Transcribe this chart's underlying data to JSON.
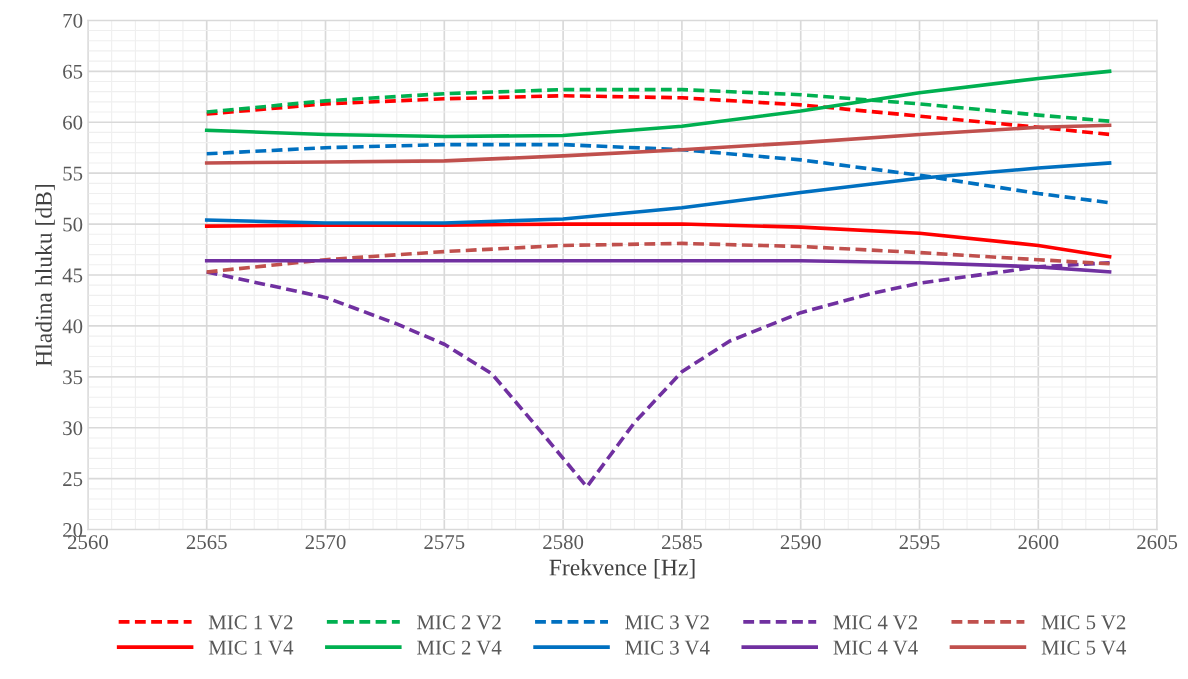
{
  "chart_data": {
    "type": "line",
    "xlabel": "Frekvence [Hz]",
    "ylabel": "Hladina hluku [dB]",
    "x": [
      2565,
      2570,
      2575,
      2580,
      2585,
      2590,
      2595,
      2600,
      2603
    ],
    "xlim": [
      2560,
      2605
    ],
    "xticks": [
      2560,
      2565,
      2570,
      2575,
      2580,
      2585,
      2590,
      2595,
      2600,
      2605
    ],
    "ylim": [
      20,
      70
    ],
    "yticks": [
      20,
      25,
      30,
      35,
      40,
      45,
      50,
      55,
      60,
      65,
      70
    ],
    "grid": true,
    "legend": "bottom",
    "marker": "none",
    "series": [
      {
        "name": "MIC 1 V2",
        "color": "#ff0000",
        "line_style": "dashed",
        "values": [
          60.8,
          61.8,
          62.3,
          62.6,
          62.4,
          61.7,
          60.6,
          59.5,
          58.8
        ]
      },
      {
        "name": "MIC 2 V2",
        "color": "#00b050",
        "line_style": "dashed",
        "values": [
          61.0,
          62.1,
          62.8,
          63.2,
          63.2,
          62.7,
          61.8,
          60.7,
          60.1
        ]
      },
      {
        "name": "MIC 3 V2",
        "color": "#0070c0",
        "line_style": "dashed",
        "values": [
          56.9,
          57.5,
          57.8,
          57.8,
          57.3,
          56.3,
          54.8,
          53.0,
          52.1
        ]
      },
      {
        "name": "MIC 4 V2",
        "color": "#7030a0",
        "line_style": "dashed",
        "x": [
          2565,
          2570,
          2573,
          2575,
          2577,
          2579,
          2581,
          2583,
          2585,
          2587,
          2590,
          2593,
          2595,
          2600,
          2603
        ],
        "values": [
          45.3,
          42.8,
          40.2,
          38.2,
          35.3,
          29.8,
          24.2,
          30.5,
          35.5,
          38.5,
          41.3,
          43.2,
          44.2,
          45.8,
          46.2
        ]
      },
      {
        "name": "MIC 5 V2",
        "color": "#c0504d",
        "line_style": "dashed",
        "values": [
          45.3,
          46.5,
          47.3,
          47.9,
          48.1,
          47.8,
          47.2,
          46.5,
          46.1
        ]
      },
      {
        "name": "MIC 1 V4",
        "color": "#ff0000",
        "line_style": "solid",
        "values": [
          49.8,
          49.9,
          49.9,
          50.0,
          50.0,
          49.7,
          49.1,
          47.9,
          46.8
        ]
      },
      {
        "name": "MIC 2 V4",
        "color": "#00b050",
        "line_style": "solid",
        "values": [
          59.2,
          58.8,
          58.6,
          58.7,
          59.6,
          61.1,
          62.9,
          64.3,
          65.0
        ]
      },
      {
        "name": "MIC 3 V4",
        "color": "#0070c0",
        "line_style": "solid",
        "values": [
          50.4,
          50.1,
          50.1,
          50.5,
          51.6,
          53.1,
          54.5,
          55.5,
          56.0
        ]
      },
      {
        "name": "MIC 4 V4",
        "color": "#7030a0",
        "line_style": "solid",
        "values": [
          46.4,
          46.4,
          46.4,
          46.4,
          46.4,
          46.4,
          46.2,
          45.8,
          45.3
        ]
      },
      {
        "name": "MIC 5 V4",
        "color": "#c0504d",
        "line_style": "solid",
        "values": [
          56.0,
          56.1,
          56.2,
          56.7,
          57.3,
          58.0,
          58.8,
          59.5,
          59.7
        ]
      }
    ]
  }
}
